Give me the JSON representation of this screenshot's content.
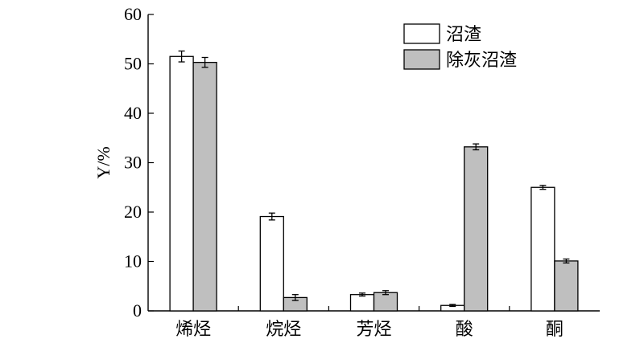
{
  "chart_data": {
    "type": "bar",
    "title": "",
    "xlabel": "",
    "ylabel": "Y/%",
    "ylim": [
      0,
      60
    ],
    "yticks": [
      0,
      10,
      20,
      30,
      40,
      50,
      60
    ],
    "categories": [
      "烯烃",
      "烷烃",
      "芳烃",
      "酸",
      "酮"
    ],
    "series": [
      {
        "name": "沼渣",
        "values": [
          51.5,
          19.1,
          3.3,
          1.1,
          25.0
        ],
        "errors": [
          1.1,
          0.7,
          0.3,
          0.2,
          0.4
        ],
        "color": "#ffffff"
      },
      {
        "name": "除灰沼渣",
        "values": [
          50.3,
          2.7,
          3.7,
          33.2,
          10.1
        ],
        "errors": [
          1.0,
          0.6,
          0.4,
          0.6,
          0.4
        ],
        "color": "#bfbfbf"
      }
    ],
    "grid": false,
    "legend_position": "top-right"
  }
}
